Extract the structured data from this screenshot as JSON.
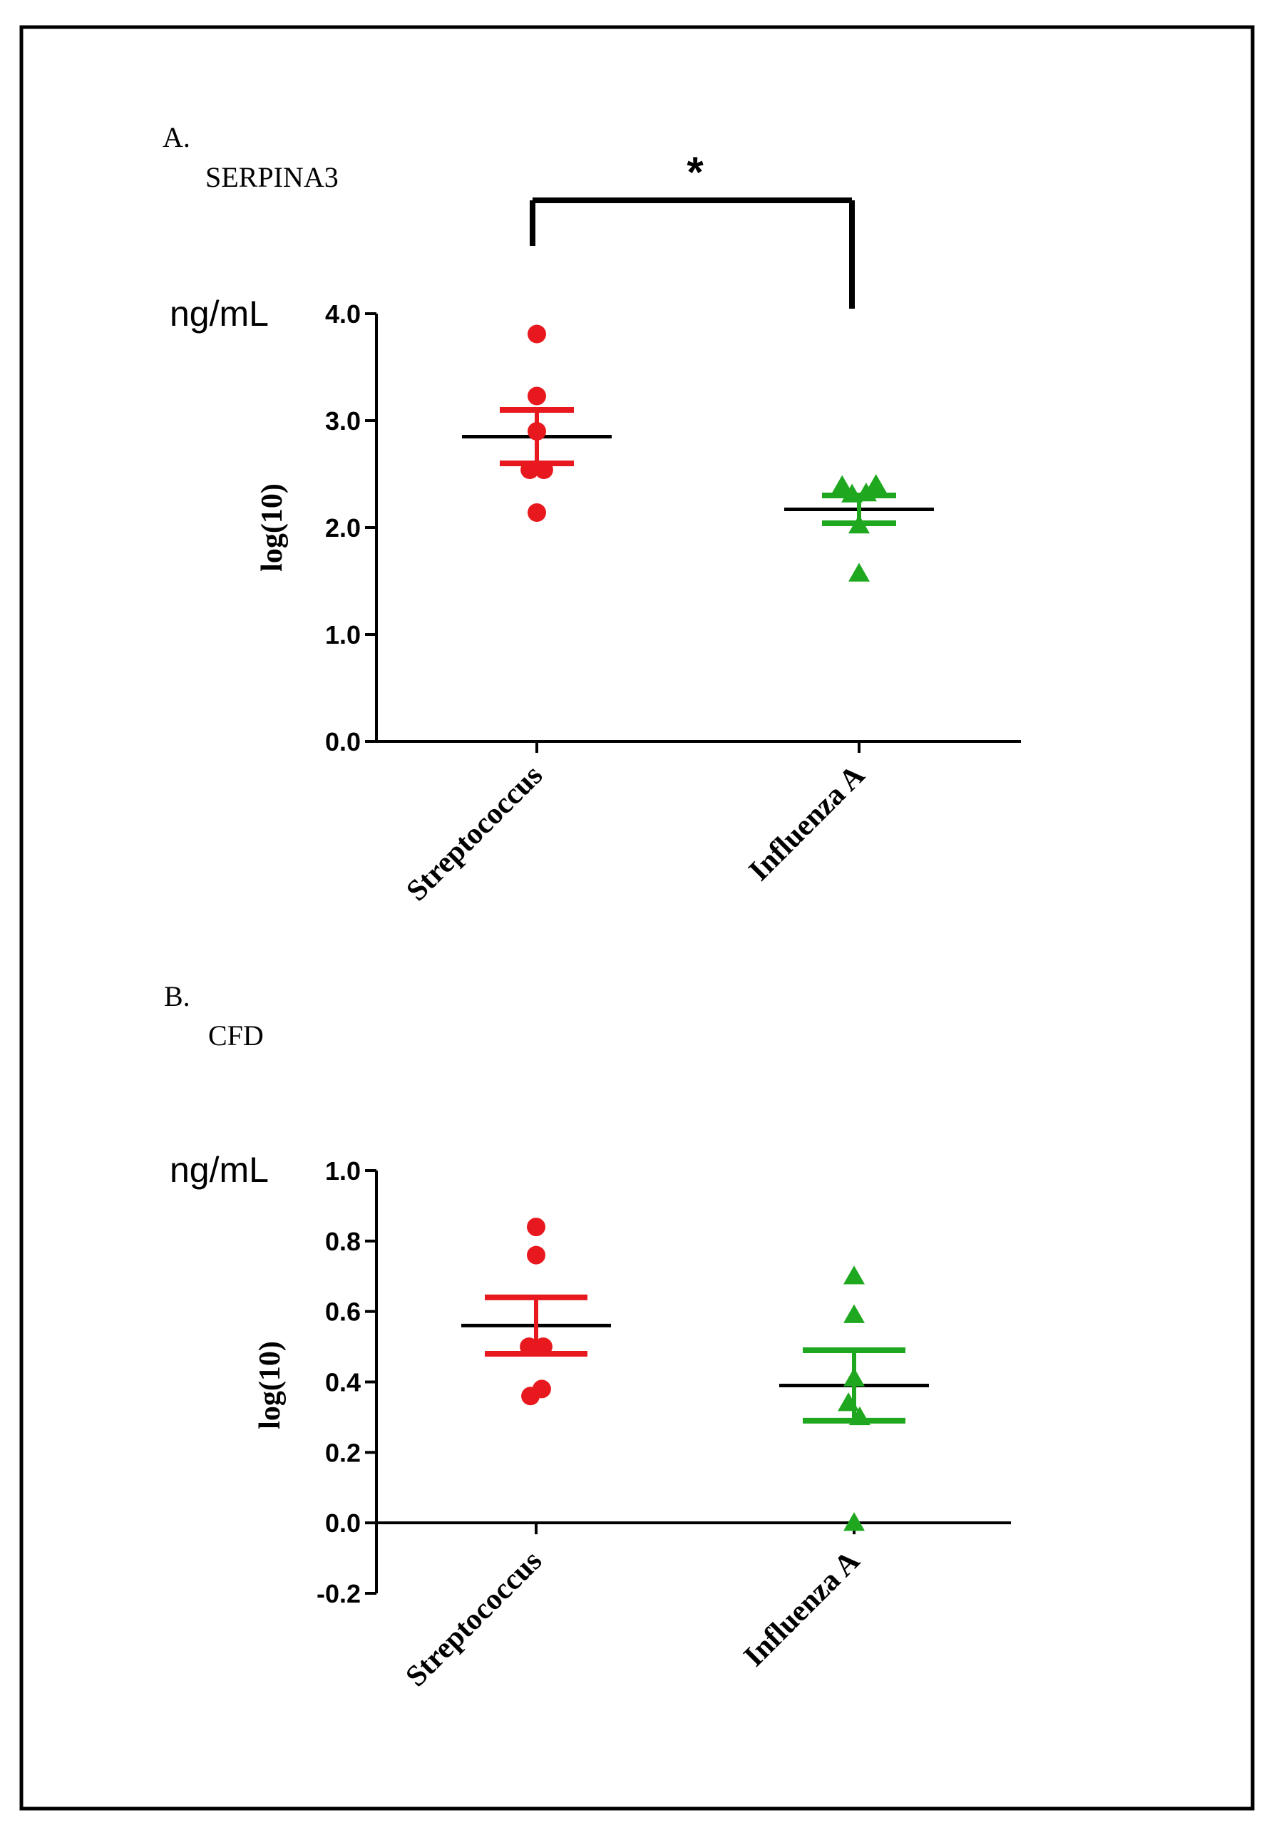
{
  "figure": {
    "colors": {
      "streptococcus": "#e8191e",
      "influenza": "#1fa81f",
      "axis": "#000000",
      "frame": "#000000"
    }
  },
  "chart_data": [
    {
      "type": "scatter",
      "panel_label": "A.",
      "title": "SERPINA3",
      "unit_label": "ng/mL",
      "ylabel": "log(10)",
      "xlabel": "",
      "categories": [
        "Streptococcus",
        "Influenza A"
      ],
      "ylim": [
        0.0,
        4.0
      ],
      "yticks": [
        0.0,
        1.0,
        2.0,
        3.0,
        4.0
      ],
      "ytick_labels": [
        "0.0",
        "1.0",
        "2.0",
        "3.0",
        "4.0"
      ],
      "significance": {
        "label": "*",
        "between": [
          "Streptococcus",
          "Influenza A"
        ]
      },
      "series": [
        {
          "name": "Streptococcus",
          "marker": "circle",
          "color": "#e8191e",
          "points": [
            {
              "dx": 0.0,
              "y": 3.81
            },
            {
              "dx": 0.0,
              "y": 3.23
            },
            {
              "dx": 0.0,
              "y": 2.9
            },
            {
              "dx": -0.05,
              "y": 2.54
            },
            {
              "dx": 0.05,
              "y": 2.54
            },
            {
              "dx": 0.0,
              "y": 2.14
            }
          ],
          "mean": 2.85,
          "sem_upper": 3.1,
          "sem_lower": 2.6
        },
        {
          "name": "Influenza A",
          "marker": "triangle",
          "color": "#1fa81f",
          "points": [
            {
              "dx": -0.12,
              "y": 2.39
            },
            {
              "dx": 0.12,
              "y": 2.4
            },
            {
              "dx": -0.05,
              "y": 2.31
            },
            {
              "dx": 0.05,
              "y": 2.32
            },
            {
              "dx": 0.0,
              "y": 2.02
            },
            {
              "dx": 0.0,
              "y": 1.57
            }
          ],
          "mean": 2.17,
          "sem_upper": 2.3,
          "sem_lower": 2.04
        }
      ]
    },
    {
      "type": "scatter",
      "panel_label": "B.",
      "title": "CFD",
      "unit_label": "ng/mL",
      "ylabel": "log(10)",
      "xlabel": "",
      "categories": [
        "Streptococcus",
        "Influenza A"
      ],
      "ylim": [
        -0.2,
        1.0
      ],
      "yticks": [
        -0.2,
        0.0,
        0.2,
        0.4,
        0.6,
        0.8,
        1.0
      ],
      "ytick_labels": [
        "-0.2",
        "0.0",
        "0.2",
        "0.4",
        "0.6",
        "0.8",
        "1.0"
      ],
      "series": [
        {
          "name": "Streptococcus",
          "marker": "circle",
          "color": "#e8191e",
          "points": [
            {
              "dx": 0.0,
              "y": 0.84
            },
            {
              "dx": 0.0,
              "y": 0.76
            },
            {
              "dx": -0.05,
              "y": 0.5
            },
            {
              "dx": 0.05,
              "y": 0.5
            },
            {
              "dx": 0.04,
              "y": 0.38
            },
            {
              "dx": -0.04,
              "y": 0.36
            }
          ],
          "mean": 0.56,
          "sem_upper": 0.64,
          "sem_lower": 0.48
        },
        {
          "name": "Influenza A",
          "marker": "triangle",
          "color": "#1fa81f",
          "points": [
            {
              "dx": 0.0,
              "y": 0.7
            },
            {
              "dx": 0.0,
              "y": 0.59
            },
            {
              "dx": 0.0,
              "y": 0.41
            },
            {
              "dx": -0.04,
              "y": 0.34
            },
            {
              "dx": 0.04,
              "y": 0.3
            },
            {
              "dx": 0.0,
              "y": 0.0
            }
          ],
          "mean": 0.39,
          "sem_upper": 0.49,
          "sem_lower": 0.29
        }
      ]
    }
  ]
}
